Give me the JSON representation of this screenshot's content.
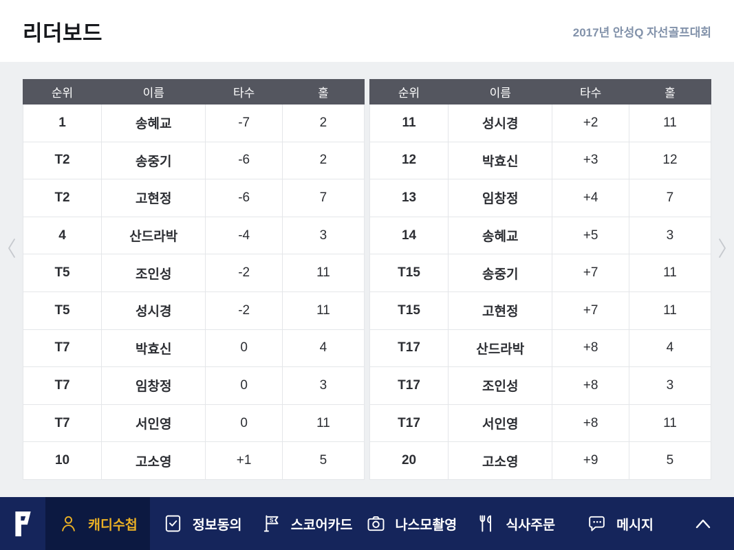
{
  "header": {
    "title": "리더보드",
    "tournament": "2017년 안성Q 자선골프대회"
  },
  "tables": {
    "columns": [
      "순위",
      "이름",
      "타수",
      "홀"
    ],
    "left": {
      "rows": [
        {
          "rank": "1",
          "name": "송혜교",
          "score": "-7",
          "hole": "2"
        },
        {
          "rank": "T2",
          "name": "송중기",
          "score": "-6",
          "hole": "2"
        },
        {
          "rank": "T2",
          "name": "고현정",
          "score": "-6",
          "hole": "7"
        },
        {
          "rank": "4",
          "name": "산드라박",
          "score": "-4",
          "hole": "3"
        },
        {
          "rank": "T5",
          "name": "조인성",
          "score": "-2",
          "hole": "11"
        },
        {
          "rank": "T5",
          "name": "성시경",
          "score": "-2",
          "hole": "11"
        },
        {
          "rank": "T7",
          "name": "박효신",
          "score": "0",
          "hole": "4"
        },
        {
          "rank": "T7",
          "name": "임창정",
          "score": "0",
          "hole": "3"
        },
        {
          "rank": "T7",
          "name": "서인영",
          "score": "0",
          "hole": "11"
        },
        {
          "rank": "10",
          "name": "고소영",
          "score": "+1",
          "hole": "5"
        }
      ]
    },
    "right": {
      "rows": [
        {
          "rank": "11",
          "name": "성시경",
          "score": "+2",
          "hole": "11"
        },
        {
          "rank": "12",
          "name": "박효신",
          "score": "+3",
          "hole": "12"
        },
        {
          "rank": "13",
          "name": "임창정",
          "score": "+4",
          "hole": "7"
        },
        {
          "rank": "14",
          "name": "송혜교",
          "score": "+5",
          "hole": "3"
        },
        {
          "rank": "T15",
          "name": "송중기",
          "score": "+7",
          "hole": "11"
        },
        {
          "rank": "T15",
          "name": "고현정",
          "score": "+7",
          "hole": "11"
        },
        {
          "rank": "T17",
          "name": "산드라박",
          "score": "+8",
          "hole": "4"
        },
        {
          "rank": "T17",
          "name": "조인성",
          "score": "+8",
          "hole": "3"
        },
        {
          "rank": "T17",
          "name": "서인영",
          "score": "+8",
          "hole": "11"
        },
        {
          "rank": "20",
          "name": "고소영",
          "score": "+9",
          "hole": "5"
        }
      ]
    }
  },
  "pager": {
    "prev_icon": "chevron-left-icon",
    "next_icon": "chevron-right-icon"
  },
  "nav": {
    "items": [
      {
        "id": "caddy-notebook",
        "label": "캐디수첩",
        "icon": "caddy-person-icon",
        "active": true
      },
      {
        "id": "info-consent",
        "label": "정보동의",
        "icon": "consent-check-icon",
        "active": false
      },
      {
        "id": "scorecard",
        "label": "스코어카드",
        "icon": "scorecard-flag-icon",
        "active": false
      },
      {
        "id": "nasmo-recording",
        "label": "나스모촬영",
        "icon": "camera-icon",
        "active": false
      },
      {
        "id": "meal-order",
        "label": "식사주문",
        "icon": "meal-cutlery-icon",
        "active": false
      },
      {
        "id": "message",
        "label": "메시지",
        "icon": "message-bubble-icon",
        "active": false
      }
    ],
    "collapse_icon": "chevron-up-icon",
    "logo_icon": "app-logo-icon"
  },
  "colors": {
    "page_bg": "#eef0f2",
    "table_header_bg": "#54565f",
    "tournament_text": "#8292aa",
    "nav_bg": "#15255b",
    "nav_active_bg": "#0c1941",
    "accent_gold": "#eab025"
  }
}
